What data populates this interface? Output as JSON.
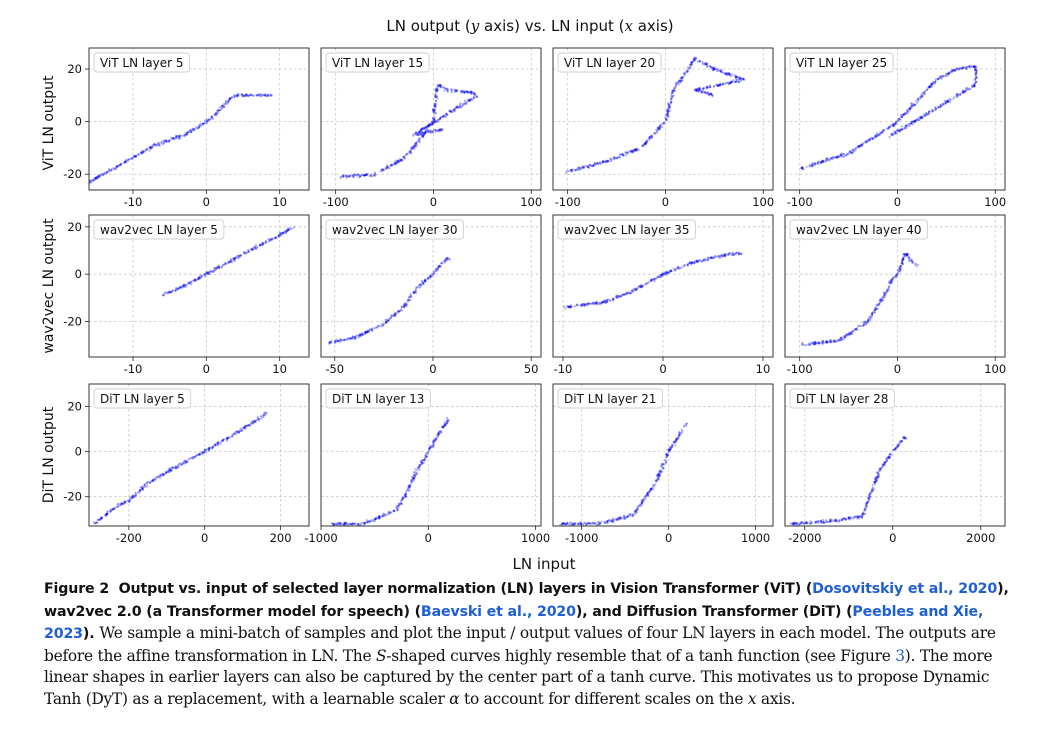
{
  "figure": {
    "suptitle_parts": [
      "LN output (",
      "y",
      " axis) vs. LN input (",
      "x",
      " axis)"
    ],
    "supxlabel": "LN input",
    "row_labels": [
      "ViT LN output",
      "wav2vec LN output",
      "DiT LN output"
    ],
    "point_color": "#0000ee"
  },
  "chart_data": [
    {
      "type": "scatter",
      "title": "ViT LN layer 5",
      "xlim": [
        -16,
        14
      ],
      "ylim": [
        -26,
        28
      ],
      "xticks": [
        -10,
        0,
        10
      ],
      "yticks": [
        -20,
        0,
        20
      ],
      "grid": true,
      "shape": [
        {
          "x": -16,
          "y": -23
        },
        {
          "x": -7,
          "y": -9
        },
        {
          "x": -5,
          "y": -7
        },
        {
          "x": -3,
          "y": -5
        },
        {
          "x": -1,
          "y": -2
        },
        {
          "x": 0,
          "y": 0
        },
        {
          "x": 1,
          "y": 2
        },
        {
          "x": 2,
          "y": 5
        },
        {
          "x": 3,
          "y": 8
        },
        {
          "x": 4,
          "y": 10
        },
        {
          "x": 7,
          "y": 10
        },
        {
          "x": 9,
          "y": 10
        }
      ]
    },
    {
      "type": "scatter",
      "title": "ViT LN layer 15",
      "xlim": [
        -115,
        110
      ],
      "ylim": [
        -26,
        28
      ],
      "xticks": [
        -100,
        0,
        100
      ],
      "yticks": [
        -20,
        0,
        20
      ],
      "grid": true,
      "shape": [
        {
          "x": -95,
          "y": -21
        },
        {
          "x": -60,
          "y": -20
        },
        {
          "x": -30,
          "y": -14
        },
        {
          "x": -10,
          "y": -5
        },
        {
          "x": 0,
          "y": 0
        },
        {
          "x": 2,
          "y": 8
        },
        {
          "x": 4,
          "y": 14
        },
        {
          "x": 15,
          "y": 12
        },
        {
          "x": 40,
          "y": 11
        },
        {
          "x": 45,
          "y": 10
        },
        {
          "x": -20,
          "y": -5
        },
        {
          "x": 10,
          "y": -3
        }
      ]
    },
    {
      "type": "scatter",
      "title": "ViT LN layer 20",
      "xlim": [
        -115,
        110
      ],
      "ylim": [
        -26,
        28
      ],
      "xticks": [
        -100,
        0,
        100
      ],
      "yticks": [
        -20,
        0,
        20
      ],
      "grid": true,
      "shape": [
        {
          "x": -100,
          "y": -19
        },
        {
          "x": -60,
          "y": -15
        },
        {
          "x": -25,
          "y": -10
        },
        {
          "x": -10,
          "y": -4
        },
        {
          "x": 0,
          "y": 0
        },
        {
          "x": 8,
          "y": 12
        },
        {
          "x": 20,
          "y": 18
        },
        {
          "x": 30,
          "y": 24
        },
        {
          "x": 50,
          "y": 20
        },
        {
          "x": 80,
          "y": 16
        },
        {
          "x": 30,
          "y": 12
        },
        {
          "x": 50,
          "y": 10
        }
      ]
    },
    {
      "type": "scatter",
      "title": "ViT LN layer 25",
      "xlim": [
        -115,
        110
      ],
      "ylim": [
        -26,
        28
      ],
      "xticks": [
        -100,
        0,
        100
      ],
      "yticks": [
        -20,
        0,
        20
      ],
      "grid": true,
      "shape": [
        {
          "x": -100,
          "y": -18
        },
        {
          "x": -50,
          "y": -12
        },
        {
          "x": -20,
          "y": -5
        },
        {
          "x": 0,
          "y": 0
        },
        {
          "x": 20,
          "y": 8
        },
        {
          "x": 40,
          "y": 16
        },
        {
          "x": 60,
          "y": 20
        },
        {
          "x": 80,
          "y": 21
        },
        {
          "x": 80,
          "y": 14
        },
        {
          "x": -10,
          "y": -6
        }
      ]
    },
    {
      "type": "scatter",
      "title": "wav2vec LN layer 5",
      "xlim": [
        -16,
        14
      ],
      "ylim": [
        -35,
        25
      ],
      "xticks": [
        -10,
        0,
        10
      ],
      "yticks": [
        -20,
        0,
        20
      ],
      "grid": true,
      "shape": [
        {
          "x": -6,
          "y": -9
        },
        {
          "x": -3,
          "y": -5
        },
        {
          "x": 0,
          "y": 0
        },
        {
          "x": 3,
          "y": 5
        },
        {
          "x": 6,
          "y": 10
        },
        {
          "x": 9,
          "y": 15
        },
        {
          "x": 12,
          "y": 20
        }
      ]
    },
    {
      "type": "scatter",
      "title": "wav2vec LN layer 30",
      "xlim": [
        -57,
        55
      ],
      "ylim": [
        -35,
        25
      ],
      "xticks": [
        -50,
        0,
        50
      ],
      "yticks": [
        -20,
        0,
        20
      ],
      "grid": true,
      "shape": [
        {
          "x": -53,
          "y": -29
        },
        {
          "x": -40,
          "y": -27
        },
        {
          "x": -25,
          "y": -21
        },
        {
          "x": -15,
          "y": -14
        },
        {
          "x": -8,
          "y": -6
        },
        {
          "x": -3,
          "y": -2
        },
        {
          "x": 0,
          "y": 0
        },
        {
          "x": 4,
          "y": 4
        },
        {
          "x": 8,
          "y": 7
        }
      ]
    },
    {
      "type": "scatter",
      "title": "wav2vec LN layer 35",
      "xlim": [
        -11,
        11
      ],
      "ylim": [
        -35,
        25
      ],
      "xticks": [
        -10,
        0,
        10
      ],
      "yticks": [
        -20,
        0,
        20
      ],
      "grid": true,
      "shape": [
        {
          "x": -10,
          "y": -14
        },
        {
          "x": -6,
          "y": -12
        },
        {
          "x": -3,
          "y": -7
        },
        {
          "x": 0,
          "y": 0
        },
        {
          "x": 3,
          "y": 5
        },
        {
          "x": 6,
          "y": 8
        },
        {
          "x": 8,
          "y": 9
        }
      ]
    },
    {
      "type": "scatter",
      "title": "wav2vec LN layer 40",
      "xlim": [
        -115,
        110
      ],
      "ylim": [
        -35,
        25
      ],
      "xticks": [
        -100,
        0,
        100
      ],
      "yticks": [
        -20,
        0,
        20
      ],
      "grid": true,
      "shape": [
        {
          "x": -100,
          "y": -30
        },
        {
          "x": -60,
          "y": -28
        },
        {
          "x": -30,
          "y": -20
        },
        {
          "x": -15,
          "y": -10
        },
        {
          "x": -5,
          "y": -2
        },
        {
          "x": 0,
          "y": 0
        },
        {
          "x": 5,
          "y": 5
        },
        {
          "x": 8,
          "y": 9
        },
        {
          "x": 20,
          "y": 3
        }
      ]
    },
    {
      "type": "scatter",
      "title": "DiT LN layer 5",
      "xlim": [
        -305,
        275
      ],
      "ylim": [
        -33,
        30
      ],
      "xticks": [
        -200,
        0,
        200
      ],
      "yticks": [
        -20,
        0,
        20
      ],
      "grid": true,
      "shape": [
        {
          "x": -290,
          "y": -32
        },
        {
          "x": -260,
          "y": -28
        },
        {
          "x": -230,
          "y": -24
        },
        {
          "x": -200,
          "y": -22
        },
        {
          "x": -150,
          "y": -14
        },
        {
          "x": -100,
          "y": -9
        },
        {
          "x": 0,
          "y": 0
        },
        {
          "x": 80,
          "y": 8
        },
        {
          "x": 165,
          "y": 17
        }
      ]
    },
    {
      "type": "scatter",
      "title": "DiT LN layer 13",
      "xlim": [
        -1000,
        1050
      ],
      "ylim": [
        -33,
        30
      ],
      "xticks": [
        -1000,
        0,
        1000
      ],
      "yticks": [
        -20,
        0,
        20
      ],
      "grid": true,
      "shape": [
        {
          "x": -900,
          "y": -32
        },
        {
          "x": -600,
          "y": -32
        },
        {
          "x": -300,
          "y": -26
        },
        {
          "x": -200,
          "y": -18
        },
        {
          "x": -100,
          "y": -8
        },
        {
          "x": 0,
          "y": 0
        },
        {
          "x": 100,
          "y": 8
        },
        {
          "x": 200,
          "y": 15
        }
      ]
    },
    {
      "type": "scatter",
      "title": "DiT LN layer 21",
      "xlim": [
        -1330,
        1200
      ],
      "ylim": [
        -33,
        30
      ],
      "xticks": [
        -1000,
        0,
        1000
      ],
      "yticks": [
        -20,
        0,
        20
      ],
      "grid": true,
      "shape": [
        {
          "x": -1250,
          "y": -32
        },
        {
          "x": -800,
          "y": -32
        },
        {
          "x": -400,
          "y": -28
        },
        {
          "x": -300,
          "y": -22
        },
        {
          "x": -150,
          "y": -14
        },
        {
          "x": 0,
          "y": 0
        },
        {
          "x": 200,
          "y": 12
        }
      ]
    },
    {
      "type": "scatter",
      "title": "DiT LN layer 28",
      "xlim": [
        -2450,
        2550
      ],
      "ylim": [
        -33,
        30
      ],
      "xticks": [
        -2000,
        0,
        2000
      ],
      "yticks": [
        -20,
        0,
        20
      ],
      "grid": true,
      "shape": [
        {
          "x": -2350,
          "y": -32
        },
        {
          "x": -1500,
          "y": -31
        },
        {
          "x": -700,
          "y": -29
        },
        {
          "x": -300,
          "y": -8
        },
        {
          "x": 0,
          "y": 0
        },
        {
          "x": 300,
          "y": 7
        }
      ]
    }
  ],
  "caption": {
    "label": "Figure 2",
    "bold_1": "Output vs. input of selected layer normalization (LN) layers in Vision Transformer (ViT) (",
    "cite_1_author": "Dosovitskiy et al.",
    "cite_sep_1": ", ",
    "cite_1_year": "2020",
    "bold_2": "), wav2vec 2.0 (a Transformer model for speech) (",
    "cite_2_author": "Baevski et al.",
    "cite_sep_2": ", ",
    "cite_2_year": "2020",
    "bold_3": "), and Diffusion Transformer (DiT) (",
    "cite_3_author": "Peebles and Xie",
    "cite_sep_3": ", ",
    "cite_3_year": "2023",
    "bold_4": ").",
    "body_1": "We sample a mini-batch of samples and plot the input / output values of four LN layers in each model. The outputs are before the affine transformation in LN. The ",
    "body_s": "S",
    "body_2": "-shaped curves highly resemble that of a tanh function (see Figure ",
    "body_fig": "3",
    "body_3": "). The more linear shapes in earlier layers can also be captured by the center part of a tanh curve. This motivates us to propose Dynamic Tanh (DyT) as a replacement, with a learnable scaler ",
    "body_alpha": "α",
    "body_4": " to account for different scales on the ",
    "body_x": "x",
    "body_5": " axis."
  }
}
